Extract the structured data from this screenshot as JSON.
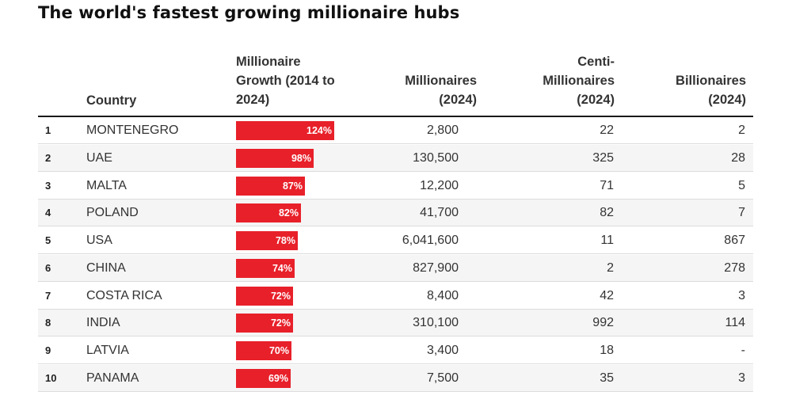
{
  "title": "The world's fastest growing millionaire hubs",
  "headers": {
    "country": "Country",
    "growth": [
      "Millionaire",
      "Growth (2014 to",
      "2024)"
    ],
    "millionaires": [
      "Millionaires",
      "(2024)"
    ],
    "centi": [
      "Centi-",
      "Millionaires",
      "(2024)"
    ],
    "billionaires": [
      "Billionaires",
      "(2024)"
    ]
  },
  "chart_data": {
    "type": "table",
    "title": "The world's fastest growing millionaire hubs",
    "columns": [
      "",
      "Country",
      "Millionaire Growth (2014 to 2024)",
      "Millionaires (2024)",
      "Centi-Millionaires (2024)",
      "Billionaires (2024)"
    ],
    "bar_color": "#e8202a",
    "bar_max": 124,
    "rows": [
      {
        "rank": "1",
        "country": "MONTENEGRO",
        "growth": 124,
        "growth_label": "124%",
        "millionaires": "2,800",
        "centi": "22",
        "billionaires": "2"
      },
      {
        "rank": "2",
        "country": "UAE",
        "growth": 98,
        "growth_label": "98%",
        "millionaires": "130,500",
        "centi": "325",
        "billionaires": "28"
      },
      {
        "rank": "3",
        "country": "MALTA",
        "growth": 87,
        "growth_label": "87%",
        "millionaires": "12,200",
        "centi": "71",
        "billionaires": "5"
      },
      {
        "rank": "4",
        "country": "POLAND",
        "growth": 82,
        "growth_label": "82%",
        "millionaires": "41,700",
        "centi": "82",
        "billionaires": "7"
      },
      {
        "rank": "5",
        "country": "USA",
        "growth": 78,
        "growth_label": "78%",
        "millionaires": "6,041,600",
        "centi": "11",
        "billionaires": "867"
      },
      {
        "rank": "6",
        "country": "CHINA",
        "growth": 74,
        "growth_label": "74%",
        "millionaires": "827,900",
        "centi": "2",
        "billionaires": "278"
      },
      {
        "rank": "7",
        "country": "COSTA RICA",
        "growth": 72,
        "growth_label": "72%",
        "millionaires": "8,400",
        "centi": "42",
        "billionaires": "3"
      },
      {
        "rank": "8",
        "country": "INDIA",
        "growth": 72,
        "growth_label": "72%",
        "millionaires": "310,100",
        "centi": "992",
        "billionaires": "114"
      },
      {
        "rank": "9",
        "country": "LATVIA",
        "growth": 70,
        "growth_label": "70%",
        "millionaires": "3,400",
        "centi": "18",
        "billionaires": "-"
      },
      {
        "rank": "10",
        "country": "PANAMA",
        "growth": 69,
        "growth_label": "69%",
        "millionaires": "7,500",
        "centi": "35",
        "billionaires": "3"
      }
    ]
  }
}
